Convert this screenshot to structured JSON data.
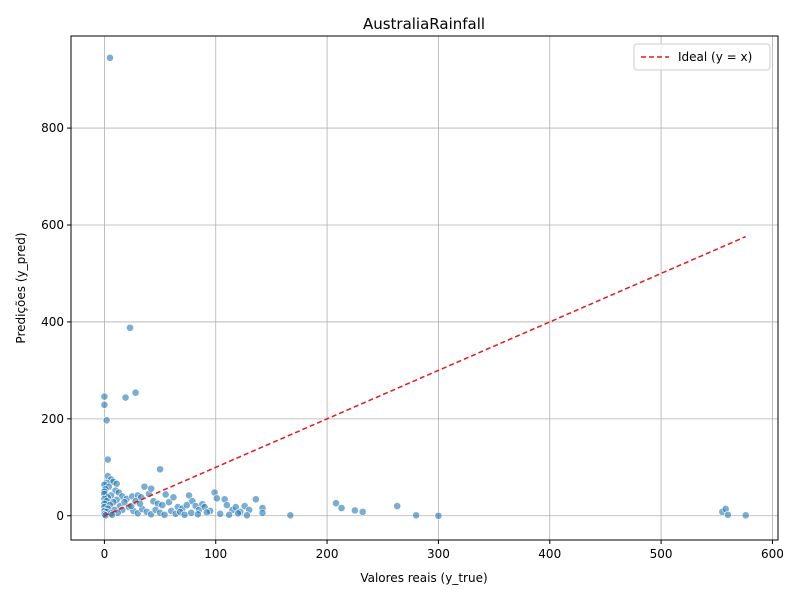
{
  "chart_data": {
    "type": "scatter",
    "title": "AustraliaRainfall",
    "xlabel": "Valores reais (y_true)",
    "ylabel": "Predições (y_pred)",
    "xlim": [
      -30,
      605
    ],
    "ylim": [
      -50,
      990
    ],
    "xticks": [
      0,
      100,
      200,
      300,
      400,
      500,
      600
    ],
    "yticks": [
      0,
      200,
      400,
      600,
      800
    ],
    "grid": true,
    "legend_position": "top-right",
    "colors": {
      "points": "#1f77b4",
      "ideal_line": "#e41a1c",
      "axes": "#000000",
      "grid": "#b0b0b0"
    },
    "series": [
      {
        "name": "",
        "kind": "scatter",
        "points": [
          [
            5,
            945
          ],
          [
            23,
            388
          ],
          [
            28,
            254
          ],
          [
            19,
            244
          ],
          [
            0,
            246
          ],
          [
            0,
            229
          ],
          [
            2,
            197
          ],
          [
            3,
            116
          ],
          [
            50,
            96
          ],
          [
            3,
            82
          ],
          [
            6,
            75
          ],
          [
            8,
            70
          ],
          [
            2,
            68
          ],
          [
            11,
            66
          ],
          [
            0,
            64
          ],
          [
            4,
            60
          ],
          [
            1,
            55
          ],
          [
            10,
            52
          ],
          [
            0,
            50
          ],
          [
            13,
            48
          ],
          [
            0,
            45
          ],
          [
            6,
            42
          ],
          [
            16,
            40
          ],
          [
            3,
            38
          ],
          [
            0,
            35
          ],
          [
            11,
            33
          ],
          [
            2,
            30
          ],
          [
            8,
            28
          ],
          [
            0,
            25
          ],
          [
            5,
            22
          ],
          [
            14,
            20
          ],
          [
            0,
            18
          ],
          [
            3,
            15
          ],
          [
            9,
            12
          ],
          [
            0,
            10
          ],
          [
            2,
            8
          ],
          [
            6,
            5
          ],
          [
            0,
            3
          ],
          [
            1,
            1
          ],
          [
            20,
            35
          ],
          [
            25,
            40
          ],
          [
            30,
            42
          ],
          [
            33,
            38
          ],
          [
            36,
            60
          ],
          [
            40,
            45
          ],
          [
            42,
            56
          ],
          [
            44,
            30
          ],
          [
            48,
            25
          ],
          [
            52,
            22
          ],
          [
            55,
            44
          ],
          [
            58,
            28
          ],
          [
            62,
            38
          ],
          [
            66,
            18
          ],
          [
            70,
            15
          ],
          [
            74,
            22
          ],
          [
            76,
            42
          ],
          [
            79,
            30
          ],
          [
            82,
            20
          ],
          [
            85,
            12
          ],
          [
            88,
            24
          ],
          [
            90,
            18
          ],
          [
            95,
            10
          ],
          [
            99,
            48
          ],
          [
            101,
            36
          ],
          [
            108,
            34
          ],
          [
            110,
            22
          ],
          [
            115,
            12
          ],
          [
            118,
            18
          ],
          [
            122,
            8
          ],
          [
            126,
            20
          ],
          [
            130,
            12
          ],
          [
            136,
            34
          ],
          [
            142,
            16
          ],
          [
            142,
            6
          ],
          [
            22,
            18
          ],
          [
            26,
            10
          ],
          [
            30,
            5
          ],
          [
            34,
            14
          ],
          [
            38,
            8
          ],
          [
            42,
            3
          ],
          [
            46,
            12
          ],
          [
            50,
            6
          ],
          [
            54,
            2
          ],
          [
            60,
            10
          ],
          [
            64,
            4
          ],
          [
            68,
            8
          ],
          [
            72,
            2
          ],
          [
            78,
            6
          ],
          [
            84,
            3
          ],
          [
            92,
            7
          ],
          [
            104,
            4
          ],
          [
            112,
            2
          ],
          [
            120,
            5
          ],
          [
            128,
            1
          ],
          [
            18,
            28
          ],
          [
            24,
            20
          ],
          [
            28,
            30
          ],
          [
            32,
            25
          ],
          [
            16,
            12
          ],
          [
            12,
            6
          ],
          [
            7,
            2
          ],
          [
            167,
            1
          ],
          [
            208,
            26
          ],
          [
            213,
            16
          ],
          [
            225,
            11
          ],
          [
            232,
            8
          ],
          [
            263,
            20
          ],
          [
            280,
            1
          ],
          [
            300,
            0
          ],
          [
            555,
            8
          ],
          [
            558,
            14
          ],
          [
            560,
            2
          ],
          [
            576,
            1
          ]
        ]
      },
      {
        "name": "Ideal (y = x)",
        "kind": "line",
        "x": [
          0,
          576
        ],
        "y": [
          0,
          576
        ]
      }
    ]
  }
}
